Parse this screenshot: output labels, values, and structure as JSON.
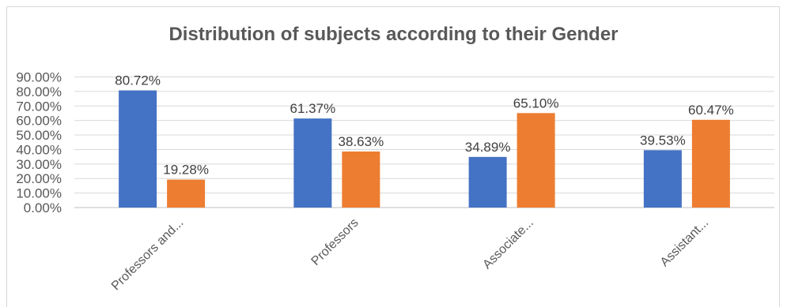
{
  "chart_data": {
    "type": "bar",
    "title": "Distribution of subjects according to their Gender",
    "categories": [
      "Professors and...",
      "Professors",
      "Associate...",
      "Assistant..."
    ],
    "series": [
      {
        "values": [
          80.72,
          61.37,
          34.89,
          39.53
        ],
        "color": "#4472c4"
      },
      {
        "values": [
          19.28,
          38.63,
          65.1,
          60.47
        ],
        "color": "#ed7d31"
      }
    ],
    "data_labels": [
      [
        "80.72%",
        "61.37%",
        "34.89%",
        "39.53%"
      ],
      [
        "19.28%",
        "38.63%",
        "65.10%",
        "60.47%"
      ]
    ],
    "yticks": [
      "0.00%",
      "10.00%",
      "20.00%",
      "30.00%",
      "40.00%",
      "50.00%",
      "60.00%",
      "70.00%",
      "80.00%",
      "90.00%"
    ],
    "ylim": [
      0,
      90
    ],
    "grid": true,
    "legend": "none"
  }
}
